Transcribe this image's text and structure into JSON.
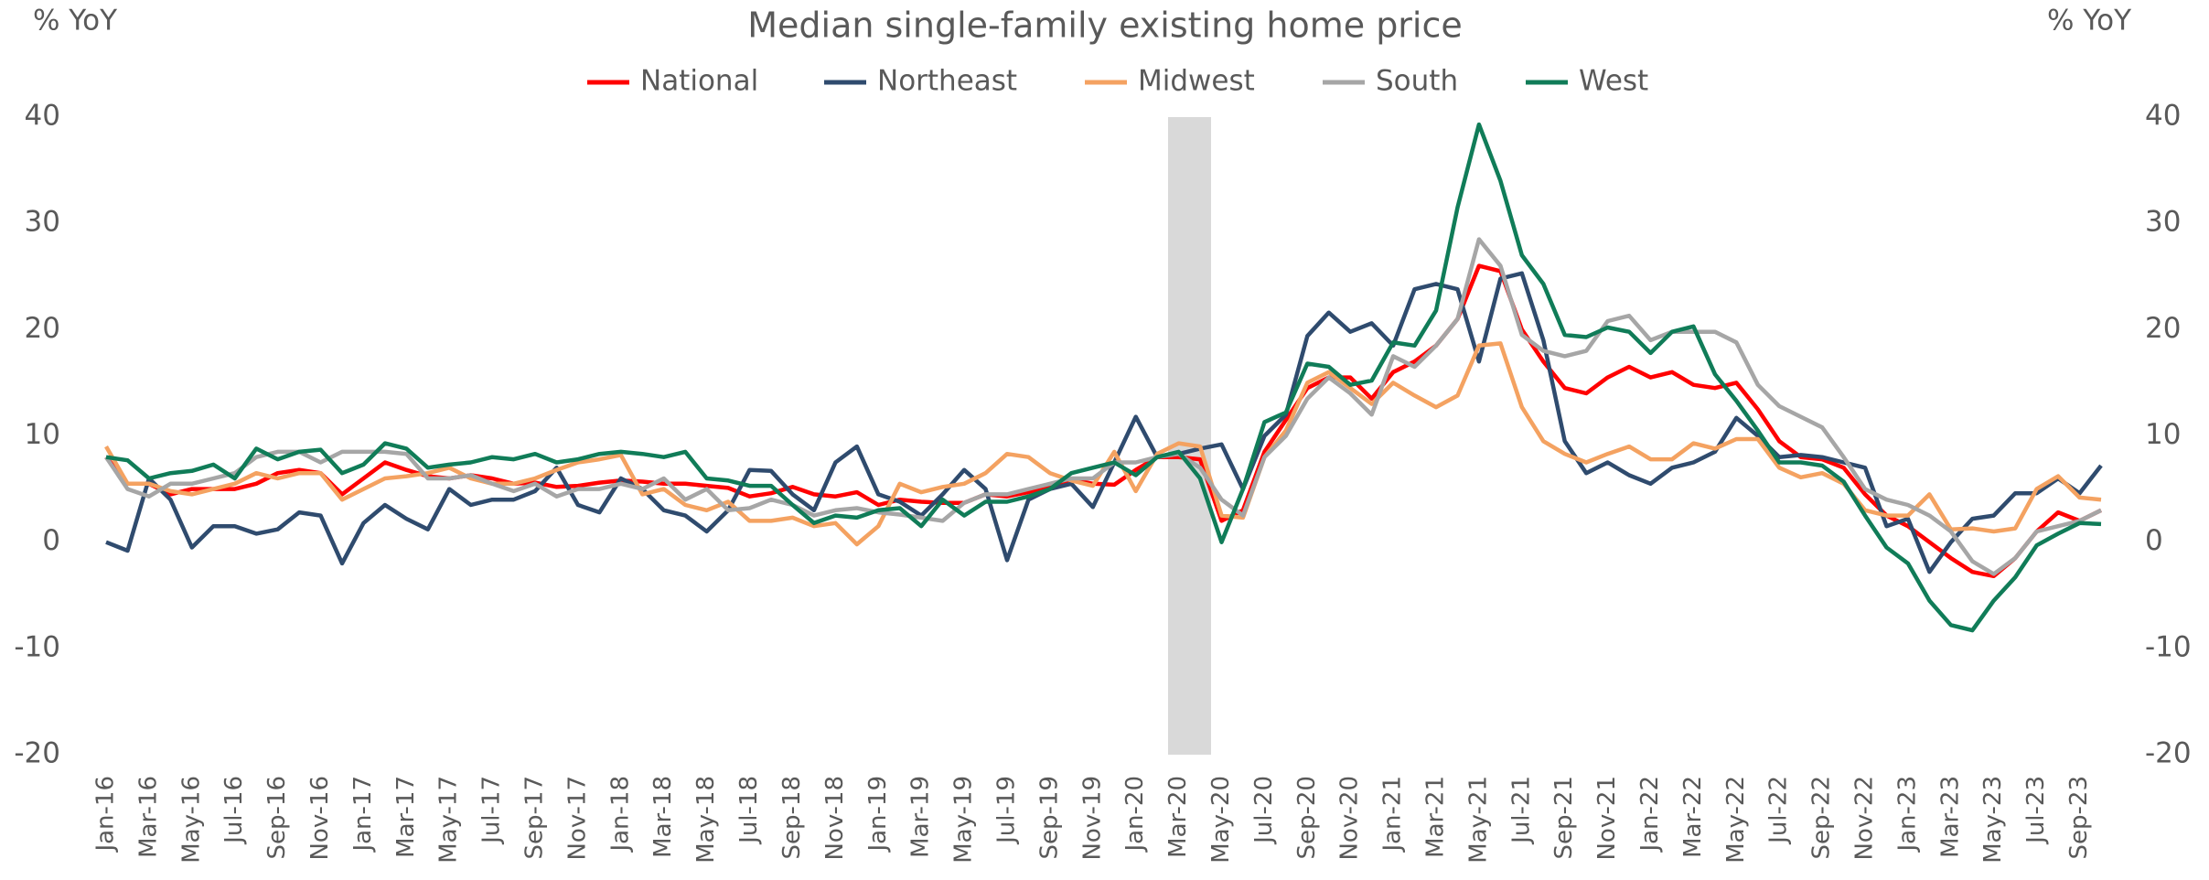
{
  "chart_data": {
    "type": "line",
    "title": "Median single-family existing home price",
    "ylabel": "% YoY",
    "y2label": "% YoY",
    "categories": [
      "Jan-16",
      null,
      "Mar-16",
      null,
      "May-16",
      null,
      "Jul-16",
      null,
      "Sep-16",
      null,
      "Nov-16",
      null,
      "Jan-17",
      null,
      "Mar-17",
      null,
      "May-17",
      null,
      "Jul-17",
      null,
      "Sep-17",
      null,
      "Nov-17",
      null,
      "Jan-18",
      null,
      "Mar-18",
      null,
      "May-18",
      null,
      "Jul-18",
      null,
      "Sep-18",
      null,
      "Nov-18",
      null,
      "Jan-19",
      null,
      "Mar-19",
      null,
      "May-19",
      null,
      "Jul-19",
      null,
      "Sep-19",
      null,
      "Nov-19",
      null,
      "Jan-20",
      null,
      "Mar-20",
      null,
      "May-20",
      null,
      "Jul-20",
      null,
      "Sep-20",
      null,
      "Nov-20",
      null,
      "Jan-21",
      null,
      "Mar-21",
      null,
      "May-21",
      null,
      "Jul-21",
      null,
      "Sep-21",
      null,
      "Nov-21",
      null,
      "Jan-22",
      null,
      "Mar-22",
      null,
      "May-22",
      null,
      "Jul-22",
      null,
      "Sep-22",
      null,
      "Nov-22",
      null,
      "Jan-23",
      null,
      "Mar-23",
      null,
      "May-23",
      null,
      "Jul-23",
      null,
      "Sep-23",
      null
    ],
    "series": [
      {
        "name": "National",
        "color": "#ff0000",
        "values": [
          8,
          5.5,
          5.5,
          4.5,
          5,
          5,
          5,
          5.5,
          6.5,
          6.8,
          6.5,
          4.5,
          6,
          7.5,
          6.8,
          6.2,
          6,
          6.3,
          6,
          5.5,
          5.6,
          5.2,
          5.3,
          5.6,
          5.8,
          5.7,
          5.5,
          5.5,
          5.3,
          5.1,
          4.3,
          4.6,
          5.2,
          4.5,
          4.3,
          4.7,
          3.5,
          4,
          3.8,
          3.7,
          3.7,
          4.5,
          4.3,
          4.7,
          5.3,
          5.9,
          5.5,
          5.4,
          6.8,
          8,
          8,
          7.8,
          2,
          3,
          8.5,
          11.5,
          14.5,
          15.5,
          15.5,
          13.5,
          16,
          17,
          18.5,
          21,
          26,
          25.5,
          20,
          17,
          14.5,
          14,
          15.5,
          16.5,
          15.5,
          16,
          14.8,
          14.5,
          15,
          12.5,
          9.5,
          8,
          7.8,
          7,
          4.5,
          2.5,
          1.5,
          0,
          -1.5,
          -2.8,
          -3.2,
          -1.5,
          1,
          2.8,
          2,
          3
        ]
      },
      {
        "name": "Northeast",
        "color": "#2f4b6e",
        "values": [
          0,
          -0.8,
          6,
          4,
          -0.5,
          1.5,
          1.5,
          0.8,
          1.2,
          2.8,
          2.5,
          -2,
          1.8,
          3.5,
          2.2,
          1.2,
          5,
          3.5,
          4,
          4,
          4.8,
          7,
          3.5,
          2.8,
          6,
          5,
          3,
          2.5,
          1,
          3,
          6.8,
          6.7,
          4.5,
          3,
          7.5,
          9,
          4.5,
          3.8,
          2.5,
          4.5,
          6.8,
          5,
          -1.7,
          4,
          5,
          5.5,
          3.3,
          7.5,
          11.8,
          8,
          8.3,
          8.8,
          9.2,
          5,
          10,
          12,
          19.4,
          21.6,
          19.8,
          20.6,
          18.5,
          23.8,
          24.3,
          23.8,
          17,
          24.8,
          25.3,
          19,
          9.5,
          6.5,
          7.5,
          6.3,
          5.5,
          7,
          7.5,
          8.5,
          11.7,
          10,
          8,
          8.2,
          8,
          7.5,
          7,
          1.5,
          2.2,
          -2.8,
          0,
          2.2,
          2.5,
          4.6,
          4.6,
          6,
          4.6,
          7.2
        ]
      },
      {
        "name": "Midwest",
        "color": "#f4a261",
        "values": [
          9,
          5.5,
          5.5,
          4.8,
          4.5,
          5,
          5.5,
          6.5,
          6,
          6.5,
          6.5,
          4,
          5,
          6,
          6.2,
          6.5,
          7,
          6,
          5.5,
          5.5,
          6,
          6.8,
          7.5,
          7.8,
          8.2,
          4.5,
          5,
          3.5,
          3,
          3.8,
          2,
          2,
          2.3,
          1.5,
          1.8,
          -0.2,
          1.5,
          5.5,
          4.7,
          5.2,
          5.5,
          6.5,
          8.3,
          8,
          6.5,
          5.8,
          5.3,
          8.5,
          4.8,
          8.3,
          9.3,
          9,
          2.5,
          2.3,
          8,
          10.5,
          15,
          16,
          14.5,
          13,
          15,
          13.8,
          12.7,
          13.8,
          18.5,
          18.7,
          12.7,
          9.5,
          8.3,
          7.5,
          8.3,
          9,
          7.8,
          7.8,
          9.3,
          8.8,
          9.7,
          9.7,
          7,
          6.1,
          6.5,
          5.5,
          3,
          2.5,
          2.5,
          4.5,
          1.2,
          1.3,
          1,
          1.3,
          5,
          6.2,
          4.2,
          4
        ]
      },
      {
        "name": "South",
        "color": "#a6a6a6",
        "values": [
          8,
          5,
          4.3,
          5.5,
          5.5,
          6,
          6.5,
          8,
          8.5,
          8.5,
          7.5,
          8.5,
          8.5,
          8.5,
          8.3,
          6,
          6,
          6.3,
          5.5,
          4.8,
          5.5,
          4.3,
          5,
          5,
          5.5,
          5,
          6,
          4,
          5,
          3,
          3.2,
          4,
          3.5,
          2.5,
          3,
          3.2,
          2.8,
          2.6,
          2.3,
          2,
          3.7,
          4.5,
          4.5,
          5,
          5.5,
          6,
          6,
          7.5,
          7.5,
          8,
          8.3,
          7,
          4,
          2.5,
          8,
          10,
          13.5,
          15.5,
          14,
          12,
          17.5,
          16.5,
          18.5,
          21,
          28.5,
          26,
          19.5,
          18,
          17.5,
          18,
          20.8,
          21.3,
          19,
          19.8,
          19.8,
          19.8,
          18.8,
          14.8,
          12.8,
          11.8,
          10.8,
          8,
          5,
          4,
          3.5,
          2.5,
          1,
          -1.8,
          -3,
          -1.5,
          1,
          1.5,
          2,
          3
        ]
      },
      {
        "name": "West",
        "color": "#107c58",
        "values": [
          8,
          7.7,
          6,
          6.5,
          6.7,
          7.3,
          6,
          8.8,
          7.8,
          8.5,
          8.7,
          6.5,
          7.3,
          9.3,
          8.8,
          7,
          7.3,
          7.5,
          8,
          7.8,
          8.3,
          7.5,
          7.8,
          8.3,
          8.5,
          8.3,
          8,
          8.5,
          6,
          5.8,
          5.3,
          5.3,
          3.5,
          1.8,
          2.5,
          2.3,
          3,
          3.2,
          1.5,
          4,
          2.5,
          3.8,
          3.8,
          4.3,
          5,
          6.5,
          7,
          7.5,
          6.3,
          8,
          8.5,
          6,
          0,
          5,
          11.3,
          12.2,
          16.8,
          16.5,
          14.8,
          15.2,
          18.8,
          18.5,
          21.8,
          31.5,
          39.3,
          34,
          27,
          24.3,
          19.5,
          19.3,
          20.2,
          19.8,
          17.8,
          19.8,
          20.3,
          15.8,
          13.3,
          10.5,
          7.5,
          7.5,
          7.2,
          5.7,
          2.5,
          -0.5,
          -2,
          -5.5,
          -7.8,
          -8.3,
          -5.5,
          -3.3,
          -0.3,
          0.8,
          1.8,
          1.7
        ]
      }
    ],
    "ylim": [
      -20,
      40
    ],
    "yticks": [
      -20,
      -10,
      0,
      10,
      20,
      30,
      40
    ],
    "y2lim": [
      -20,
      40
    ],
    "y2ticks": [
      -20,
      -10,
      0,
      10,
      20,
      30,
      40
    ],
    "grid": false,
    "legend": "top"
  }
}
